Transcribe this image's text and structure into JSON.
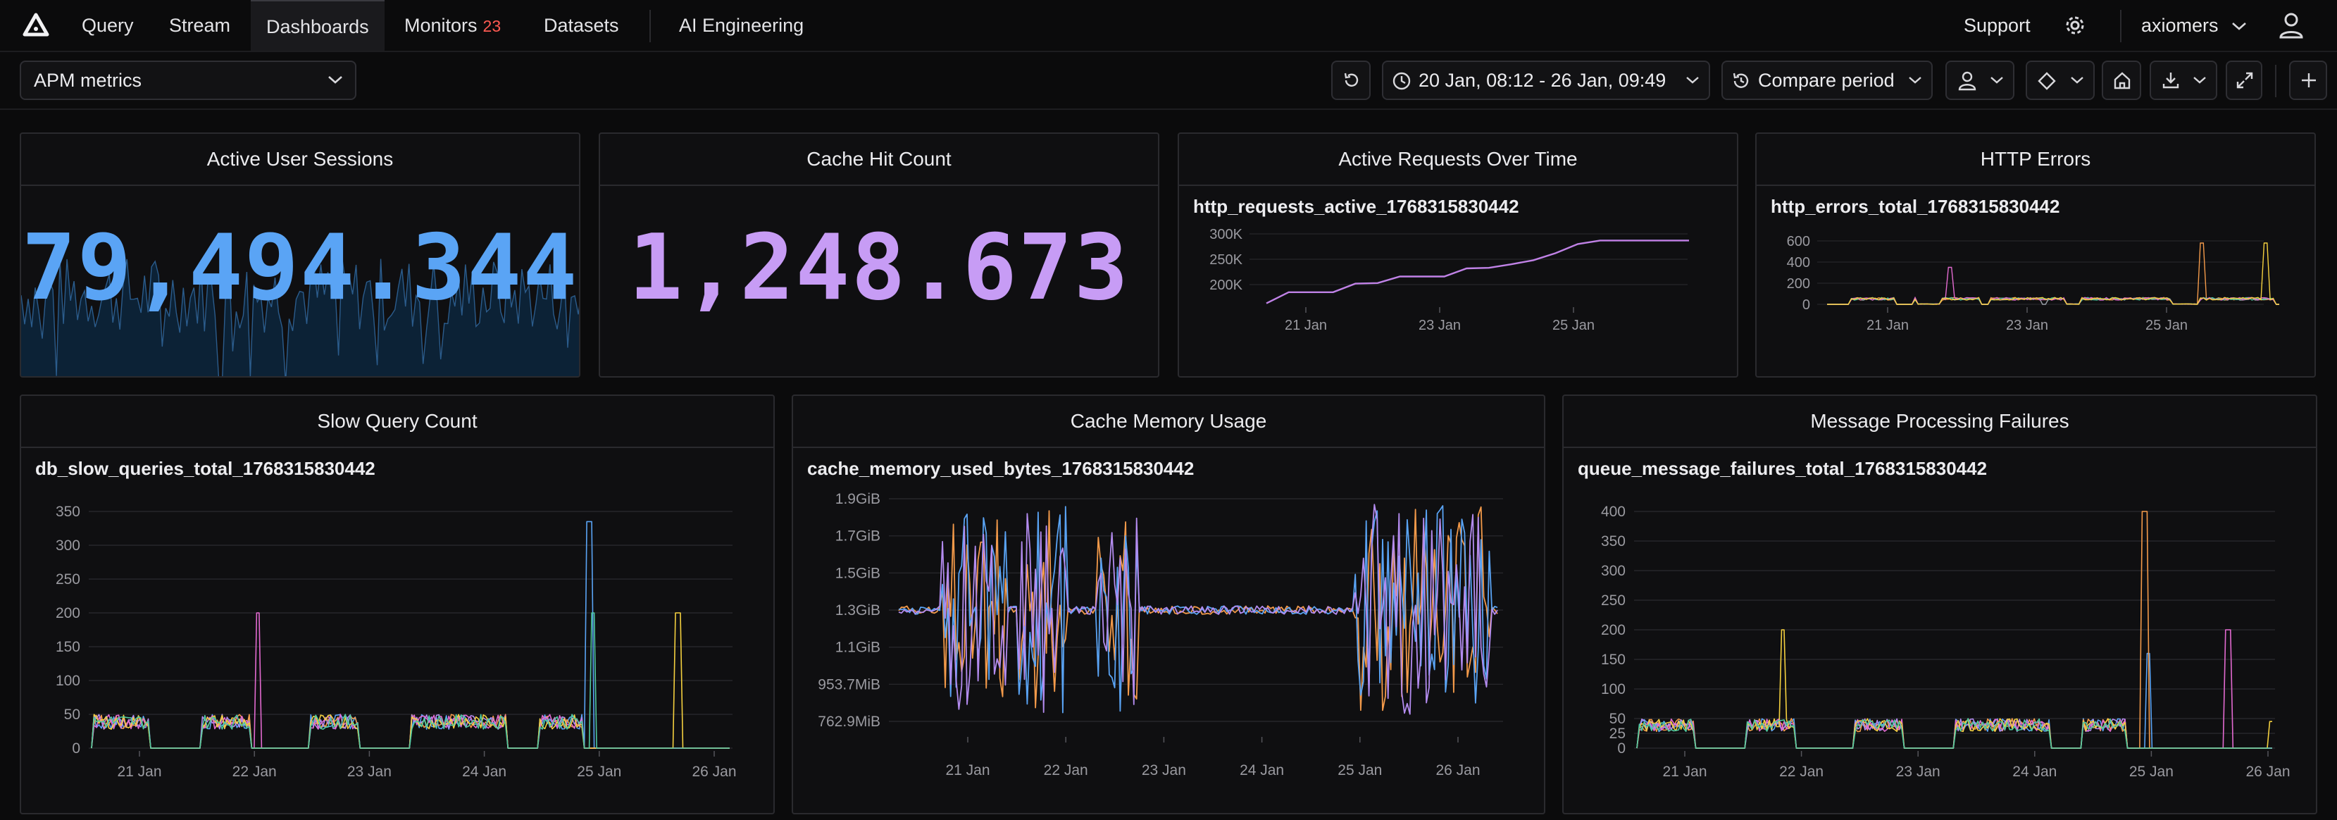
{
  "nav": {
    "items": [
      {
        "label": "Query"
      },
      {
        "label": "Stream"
      },
      {
        "label": "Dashboards"
      },
      {
        "label": "Monitors"
      },
      {
        "label": "Datasets"
      },
      {
        "label": "AI Engineering"
      }
    ],
    "monitors_badge": "23",
    "support_label": "Support",
    "account_label": "axiomers"
  },
  "toolbar": {
    "dashboard_select": "APM metrics",
    "time_range": "20 Jan, 08:12 - 26 Jan, 09:49",
    "compare_label": "Compare period"
  },
  "panels": {
    "active_sessions": {
      "title": "Active User Sessions",
      "value": "79,494.344",
      "color": "#5aa4f5"
    },
    "cache_hits": {
      "title": "Cache Hit Count",
      "value": "1,248.673",
      "color": "#c79cf5"
    },
    "active_requests": {
      "title": "Active Requests Over Time",
      "metric": "http_requests_active_1768315830442"
    },
    "http_errors": {
      "title": "HTTP Errors",
      "metric": "http_errors_total_1768315830442"
    },
    "slow_queries": {
      "title": "Slow Query Count",
      "metric": "db_slow_queries_total_1768315830442"
    },
    "cache_memory": {
      "title": "Cache Memory Usage",
      "metric": "cache_memory_used_bytes_1768315830442"
    },
    "msg_failures": {
      "title": "Message Processing Failures",
      "metric": "queue_message_failures_total_1768315830442"
    }
  },
  "chart_data": [
    {
      "type": "line",
      "id": "active_requests",
      "x_ticks": [
        "21 Jan",
        "23 Jan",
        "25 Jan"
      ],
      "y_ticks": [
        "200K",
        "250K",
        "300K"
      ],
      "ylim": [
        180000,
        310000
      ],
      "series": [
        {
          "values": [
            163000,
            185000,
            185000,
            185000,
            202000,
            203000,
            216000,
            216000,
            216000,
            232000,
            233000,
            240000,
            248000,
            262000,
            280000,
            287000,
            287000,
            287000,
            287000,
            287000
          ]
        }
      ]
    },
    {
      "type": "line",
      "id": "http_errors",
      "x_ticks": [
        "21 Jan",
        "23 Jan",
        "25 Jan"
      ],
      "y_ticks": [
        "0",
        "200",
        "400",
        "600"
      ],
      "ylim": [
        0,
        650
      ]
    },
    {
      "type": "line",
      "id": "slow_queries",
      "x_ticks": [
        "21 Jan",
        "22 Jan",
        "23 Jan",
        "24 Jan",
        "25 Jan",
        "26 Jan"
      ],
      "y_ticks": [
        "0",
        "50",
        "100",
        "150",
        "200",
        "250",
        "300",
        "350"
      ],
      "ylim": [
        0,
        360
      ]
    },
    {
      "type": "line",
      "id": "cache_memory",
      "x_ticks": [
        "21 Jan",
        "22 Jan",
        "23 Jan",
        "24 Jan",
        "25 Jan",
        "26 Jan"
      ],
      "y_ticks": [
        "762.9MiB",
        "953.7MiB",
        "1.1GiB",
        "1.3GiB",
        "1.5GiB",
        "1.7GiB",
        "1.9GiB"
      ]
    },
    {
      "type": "line",
      "id": "msg_failures",
      "x_ticks": [
        "21 Jan",
        "22 Jan",
        "23 Jan",
        "24 Jan",
        "25 Jan",
        "26 Jan"
      ],
      "y_ticks": [
        "0",
        "25",
        "50",
        "100",
        "150",
        "200",
        "250",
        "300",
        "350",
        "400"
      ],
      "ylim": [
        0,
        410
      ]
    }
  ]
}
